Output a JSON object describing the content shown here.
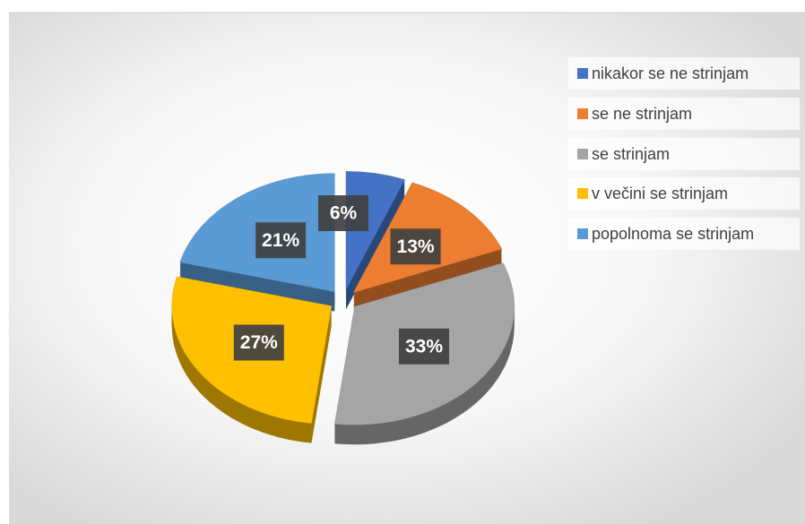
{
  "chart_data": {
    "type": "pie",
    "categories": [
      "nikakor se ne strinjam",
      "se ne strinjam",
      "se strinjam",
      "v večini se strinjam",
      "popolnoma se strinjam"
    ],
    "values": [
      6,
      13,
      33,
      27,
      21
    ],
    "value_labels": [
      "6%",
      "13%",
      "33%",
      "27%",
      "21%"
    ],
    "colors": [
      "#4472c4",
      "#ed7d31",
      "#a5a5a5",
      "#ffc000",
      "#5b9bd5"
    ],
    "legend": "right"
  }
}
